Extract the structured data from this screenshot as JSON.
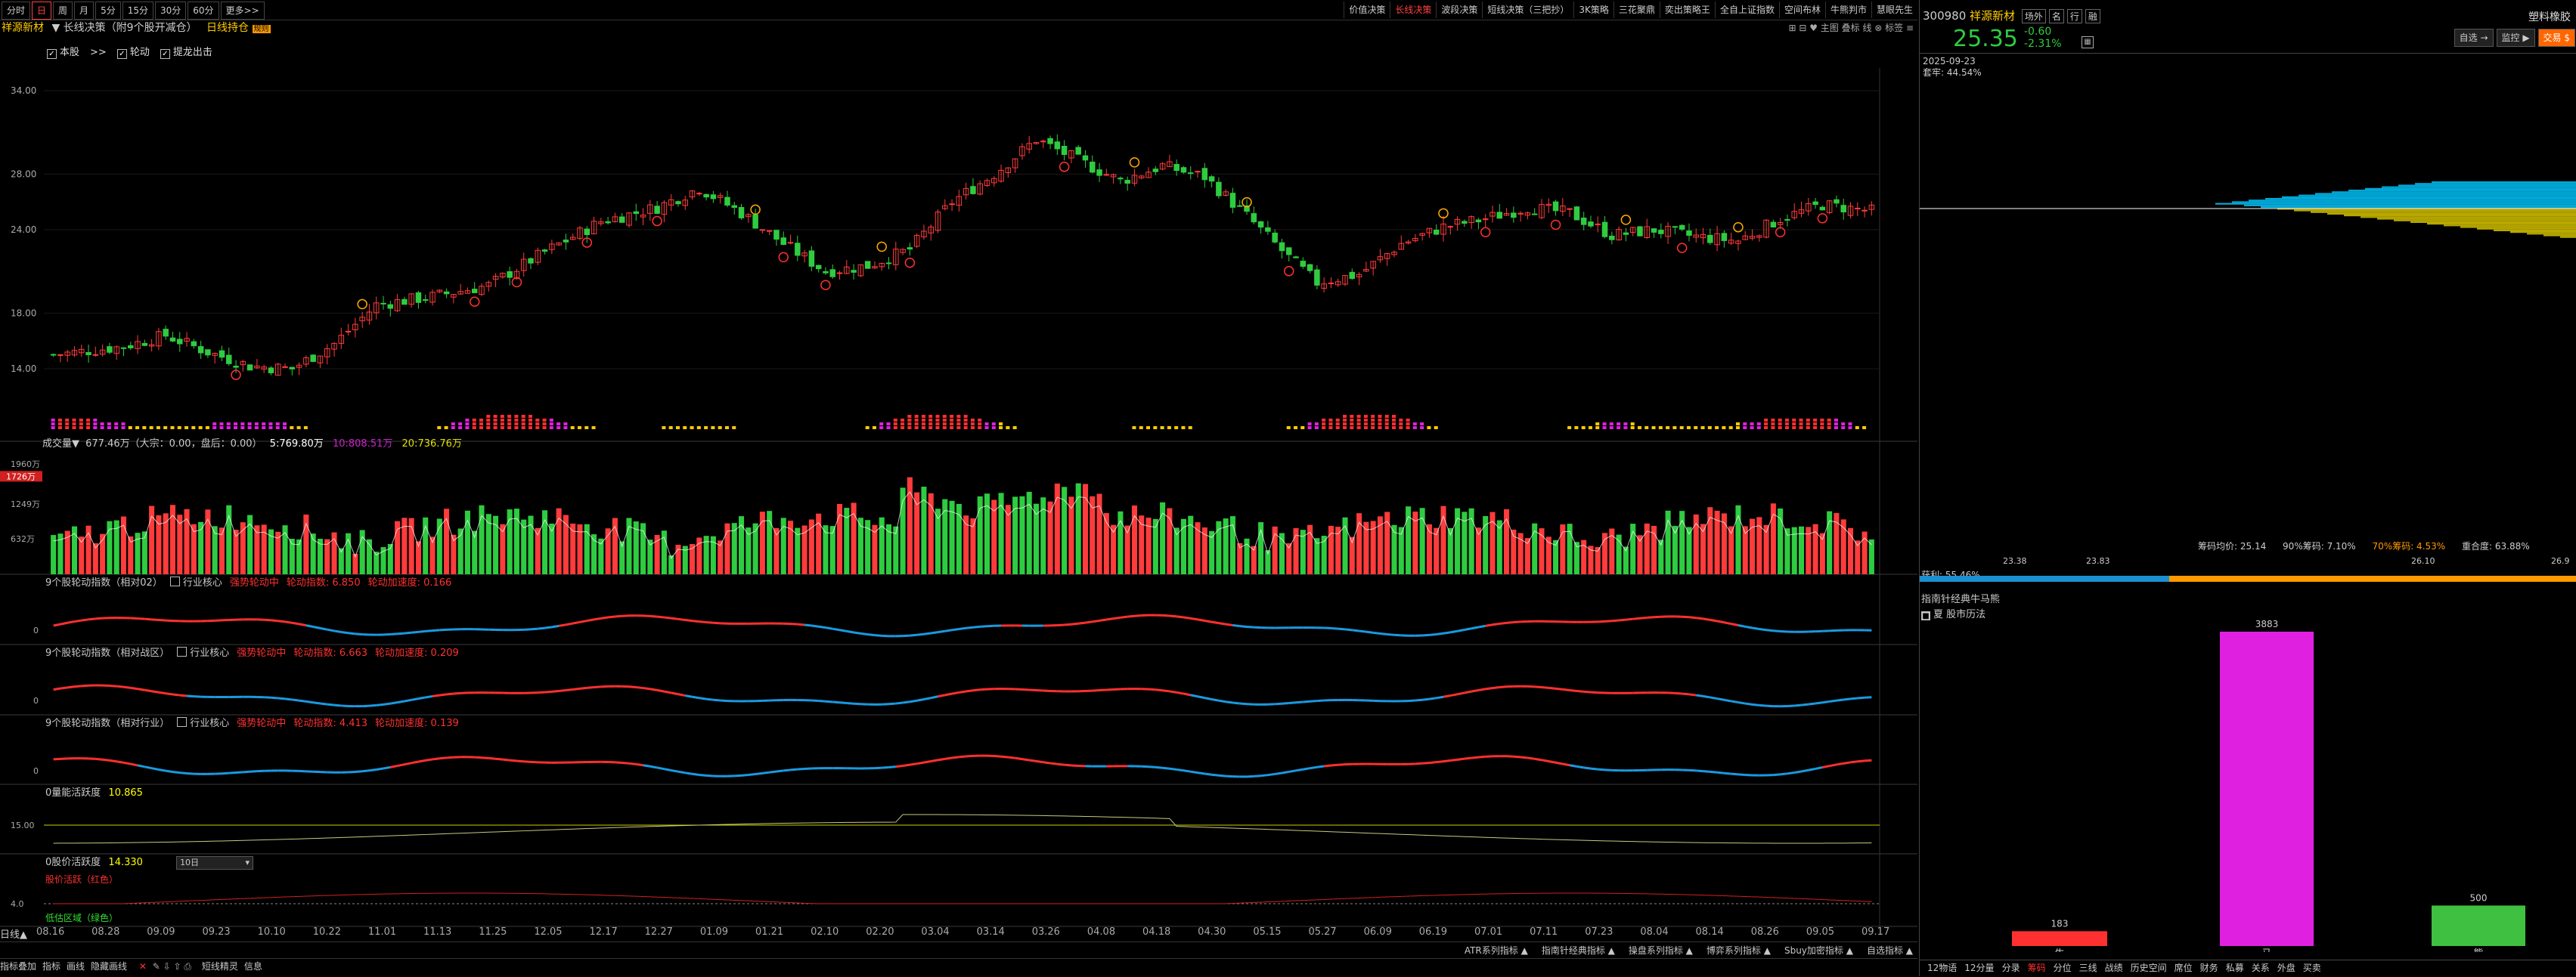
{
  "colors": {
    "up": "#ff3b3b",
    "down": "#2ecc40",
    "accent": "#ff9900",
    "cyan": "#00b4e6",
    "yellow": "#c8b400",
    "magenta": "#e020e0",
    "green": "#40c040",
    "red": "#ff3030"
  },
  "topbar": {
    "periods": [
      "分时",
      "日",
      "周",
      "月",
      "5分",
      "15分",
      "30分",
      "60分",
      "更多>>"
    ],
    "selected_period": "日",
    "right_tabs": [
      "价值决策",
      "长线决策",
      "波段决策",
      "短线决策（三把抄）",
      "3K策略",
      "三花聚鼎",
      "奕出策略王",
      "全自上证指数",
      "空间布林",
      "牛熊判市",
      "慧眼先生"
    ],
    "selected_right_tab": "长线决策"
  },
  "header": {
    "stock_name": "祥源新材",
    "indicator": "长线决策（附9个股开减仓）",
    "tag": "日线持仓",
    "tag_badge": "规则"
  },
  "checks": [
    {
      "label": "本股",
      "checked": true
    },
    {
      "label": "轮动",
      "checked": true
    },
    {
      "label": "提龙出击",
      "checked": true
    }
  ],
  "checks_sep": ">>",
  "main_chart": {
    "y_ticks": [
      "34.00",
      "28.00",
      "24.00",
      "18.00",
      "14.00"
    ],
    "y_values": [
      34,
      28,
      24,
      18,
      14
    ],
    "right_icons": "⊞ ⊟ ♥ 主图 叠标 线 ⊗ 标签 ≡"
  },
  "volume": {
    "header": "成交量▼",
    "values_text": "677.46万（大宗：0.00，盘后：0.00）",
    "ma5": "5:769.80万",
    "ma10": "10:808.51万",
    "ma20": "20:736.76万",
    "y_ticks": [
      "1960万",
      "1249万",
      "632万"
    ],
    "y_values": [
      1960,
      1249,
      632
    ],
    "marker": "1726万"
  },
  "indicators": [
    {
      "title": "9个股轮动指数（相对02）",
      "chk": "行业核心",
      "label1": "强势轮动中",
      "value": "轮动指数: 6.850",
      "accel": "轮动加速度: 0.166"
    },
    {
      "title": "9个股轮动指数（相对战区）",
      "chk": "行业核心",
      "label1": "强势轮动中",
      "value": "轮动指数: 6.663",
      "accel": "轮动加速度: 0.209"
    },
    {
      "title": "9个股轮动指数（相对行业）",
      "chk": "行业核心",
      "label1": "强势轮动中",
      "value": "轮动指数: 4.413",
      "accel": "轮动加速度: 0.139"
    }
  ],
  "indicator_zero": "0",
  "panel5": {
    "title": "0量能活跃度",
    "value": "10.865",
    "y_tick": "15.00"
  },
  "panel6": {
    "title": "0股价活跃度",
    "value": "14.330",
    "select": "10日",
    "sub": "股价活跃（红色）",
    "sub2": "低估区域（绿色）",
    "y_tick": "4.0"
  },
  "x_dates": [
    "08.16",
    "08.28",
    "09.09",
    "09.23",
    "10.10",
    "10.22",
    "11.01",
    "11.13",
    "11.25",
    "12.05",
    "12.17",
    "12.27",
    "01.09",
    "01.21",
    "02.10",
    "02.20",
    "03.04",
    "03.14",
    "03.26",
    "04.08",
    "04.18",
    "04.30",
    "05.15",
    "05.27",
    "06.09",
    "06.19",
    "07.01",
    "07.11",
    "07.23",
    "08.04",
    "08.14",
    "08.26",
    "09.05",
    "09.17"
  ],
  "bottom_tabs": [
    "ATR系列指标",
    "指南针经典指标",
    "操盘系列指标",
    "博弈系列指标",
    "Sbuy加密指标",
    "自选指标"
  ],
  "bottom_left": [
    "指标叠加",
    "指标",
    "画线",
    "隐藏画线"
  ],
  "bottom_mid": [
    "短线精灵",
    "信息"
  ],
  "day_label": "日线▲",
  "right": {
    "code": "300980",
    "name": "祥源新材",
    "tags": [
      "场外",
      "名",
      "行",
      "融"
    ],
    "sector": "塑料橡胶",
    "price": "25.35",
    "change": "-0.60",
    "pct": "-2.31%",
    "date": "2025-09-23",
    "rate": "套牢: 44.54%",
    "buttons": [
      "自选 →",
      "监控 ▶",
      "交易 $"
    ],
    "chip_stats": {
      "avg": "筹码均价: 25.14",
      "p90": "90%筹码: 7.10%",
      "p70": "70%筹码: 4.53%",
      "overlap": "重合度: 63.88%"
    },
    "profit": "获利: 55.46%",
    "scale": [
      "23.38",
      "23.83",
      "26.10",
      "26.9"
    ],
    "title2": "指南针经典牛马熊",
    "sub2": "夏  股市历法",
    "bars": [
      {
        "label": "牛",
        "value": 183,
        "color": "#ff3030"
      },
      {
        "label": "马",
        "value": 3883,
        "color": "#e020e0"
      },
      {
        "label": "熊",
        "value": 500,
        "color": "#40c040"
      }
    ],
    "bottom_tabs": [
      "12物语",
      "12分量",
      "分录",
      "筹码",
      "分位",
      "三线",
      "战绩",
      "历史空间",
      "席位",
      "财务",
      "私募",
      "关系",
      "外盘",
      "买卖"
    ],
    "selected_bottom": "筹码"
  }
}
